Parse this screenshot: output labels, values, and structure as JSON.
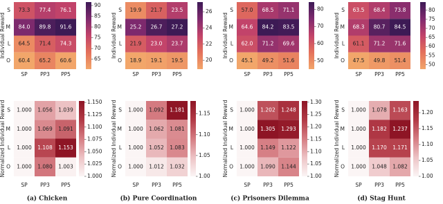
{
  "chart_data": [
    {
      "type": "heatmap",
      "ylabel": "Individual Reward",
      "x": [
        "SP",
        "PP3",
        "PP5"
      ],
      "y": [
        "S",
        "M",
        "L",
        "O"
      ],
      "values": [
        [
          73.3,
          77.4,
          76.1
        ],
        [
          84.0,
          89.8,
          91.6
        ],
        [
          64.5,
          71.4,
          74.3
        ],
        [
          60.4,
          65.2,
          60.6
        ]
      ],
      "value_labels": [
        [
          "73.3",
          "77.4",
          "76.1"
        ],
        [
          "84.0",
          "89.8",
          "91.6"
        ],
        [
          "64.5",
          "71.4",
          "74.3"
        ],
        [
          "60.4",
          "65.2",
          "60.6"
        ]
      ],
      "clim": [
        60.4,
        91.6
      ],
      "colorbar_ticks": [
        65,
        70,
        75,
        80,
        85,
        90
      ],
      "colormap": [
        "#f2a66a",
        "#e4715b",
        "#c2436a",
        "#7f2a6e",
        "#3d1a55"
      ]
    },
    {
      "type": "heatmap",
      "ylabel": "Individual Reward",
      "x": [
        "SP",
        "PP3",
        "PP5"
      ],
      "y": [
        "S",
        "M",
        "L",
        "O"
      ],
      "values": [
        [
          19.9,
          21.7,
          23.5
        ],
        [
          25.2,
          26.7,
          27.2
        ],
        [
          21.9,
          23.0,
          23.7
        ],
        [
          18.9,
          19.1,
          19.5
        ]
      ],
      "value_labels": [
        [
          "19.9",
          "21.7",
          "23.5"
        ],
        [
          "25.2",
          "26.7",
          "27.2"
        ],
        [
          "21.9",
          "23.0",
          "23.7"
        ],
        [
          "18.9",
          "19.1",
          "19.5"
        ]
      ],
      "clim": [
        18.9,
        27.2
      ],
      "colorbar_ticks": [
        20,
        22,
        24,
        26
      ],
      "colormap": [
        "#f2a66a",
        "#e4715b",
        "#c2436a",
        "#7f2a6e",
        "#3d1a55"
      ]
    },
    {
      "type": "heatmap",
      "ylabel": "Individual Reward",
      "x": [
        "SP",
        "PP3",
        "PP5"
      ],
      "y": [
        "S",
        "M",
        "L",
        "O"
      ],
      "values": [
        [
          57.0,
          68.5,
          71.1
        ],
        [
          64.6,
          84.2,
          83.5
        ],
        [
          62.0,
          71.2,
          69.6
        ],
        [
          45.1,
          49.2,
          51.6
        ]
      ],
      "value_labels": [
        [
          "57.0",
          "68.5",
          "71.1"
        ],
        [
          "64.6",
          "84.2",
          "83.5"
        ],
        [
          "62.0",
          "71.2",
          "69.6"
        ],
        [
          "45.1",
          "49.2",
          "51.6"
        ]
      ],
      "clim": [
        45.1,
        84.2
      ],
      "colorbar_ticks": [
        50,
        60,
        70,
        80
      ],
      "colormap": [
        "#f2a66a",
        "#e4715b",
        "#c2436a",
        "#7f2a6e",
        "#3d1a55"
      ]
    },
    {
      "type": "heatmap",
      "ylabel": "Individual Reward",
      "x": [
        "SP",
        "PP3",
        "PP5"
      ],
      "y": [
        "S",
        "M",
        "L",
        "O"
      ],
      "values": [
        [
          63.5,
          68.4,
          73.8
        ],
        [
          68.3,
          80.7,
          84.5
        ],
        [
          61.1,
          71.2,
          71.6
        ],
        [
          47.5,
          49.8,
          51.4
        ]
      ],
      "value_labels": [
        [
          "63.5",
          "68.4",
          "73.8"
        ],
        [
          "68.3",
          "80.7",
          "84.5"
        ],
        [
          "61.1",
          "71.2",
          "71.6"
        ],
        [
          "47.5",
          "49.8",
          "51.4"
        ]
      ],
      "clim": [
        47.5,
        84.5
      ],
      "colorbar_ticks": [
        50,
        55,
        60,
        65,
        70,
        75,
        80
      ],
      "colormap": [
        "#f2a66a",
        "#e4715b",
        "#c2436a",
        "#7f2a6e",
        "#3d1a55"
      ]
    },
    {
      "type": "heatmap",
      "ylabel": "Normalized Individual Reward",
      "x": [
        "SP",
        "PP3",
        "PP5"
      ],
      "y": [
        "S",
        "M",
        "L",
        "O"
      ],
      "values": [
        [
          1.0,
          1.056,
          1.039
        ],
        [
          1.0,
          1.069,
          1.091
        ],
        [
          1.0,
          1.108,
          1.153
        ],
        [
          1.0,
          1.08,
          1.003
        ]
      ],
      "value_labels": [
        [
          "1.000",
          "1.056",
          "1.039"
        ],
        [
          "1.000",
          "1.069",
          "1.091"
        ],
        [
          "1.000",
          "1.108",
          "1.153"
        ],
        [
          "1.000",
          "1.080",
          "1.003"
        ]
      ],
      "clim": [
        1.0,
        1.153
      ],
      "colorbar_ticks": [
        {
          "value": 1.0,
          "label": "1.000"
        },
        {
          "value": 1.025,
          "label": "1.025"
        },
        {
          "value": 1.05,
          "label": "1.050"
        },
        {
          "value": 1.075,
          "label": "1.075"
        },
        {
          "value": 1.1,
          "label": "1.100"
        },
        {
          "value": 1.125,
          "label": "1.125"
        },
        {
          "value": 1.15,
          "label": "1.150"
        }
      ],
      "colormap": [
        "#fbf5f5",
        "#edc3c5",
        "#d57c82",
        "#b23a46",
        "#8e1525"
      ]
    },
    {
      "type": "heatmap",
      "ylabel": "Normalized Individual Reward",
      "x": [
        "SP",
        "PP3",
        "PP5"
      ],
      "y": [
        "S",
        "M",
        "L",
        "O"
      ],
      "values": [
        [
          1.0,
          1.092,
          1.181
        ],
        [
          1.0,
          1.062,
          1.081
        ],
        [
          1.0,
          1.052,
          1.083
        ],
        [
          1.0,
          1.012,
          1.032
        ]
      ],
      "value_labels": [
        [
          "1.000",
          "1.092",
          "1.181"
        ],
        [
          "1.000",
          "1.062",
          "1.081"
        ],
        [
          "1.000",
          "1.052",
          "1.083"
        ],
        [
          "1.000",
          "1.012",
          "1.032"
        ]
      ],
      "clim": [
        1.0,
        1.181
      ],
      "colorbar_ticks": [
        {
          "value": 1.0,
          "label": "1.00"
        },
        {
          "value": 1.05,
          "label": "1.05"
        },
        {
          "value": 1.1,
          "label": "1.10"
        },
        {
          "value": 1.15,
          "label": "1.15"
        }
      ],
      "colormap": [
        "#fbf5f5",
        "#edc3c5",
        "#d57c82",
        "#b23a46",
        "#8e1525"
      ]
    },
    {
      "type": "heatmap",
      "ylabel": "Normalized Individual Reward",
      "x": [
        "SP",
        "PP3",
        "PP5"
      ],
      "y": [
        "S",
        "M",
        "L",
        "O"
      ],
      "values": [
        [
          1.0,
          1.202,
          1.248
        ],
        [
          1.0,
          1.305,
          1.293
        ],
        [
          1.0,
          1.149,
          1.122
        ],
        [
          1.0,
          1.09,
          1.144
        ]
      ],
      "value_labels": [
        [
          "1.000",
          "1.202",
          "1.248"
        ],
        [
          "1.000",
          "1.305",
          "1.293"
        ],
        [
          "1.000",
          "1.149",
          "1.122"
        ],
        [
          "1.000",
          "1.090",
          "1.144"
        ]
      ],
      "clim": [
        1.0,
        1.305
      ],
      "colorbar_ticks": [
        {
          "value": 1.0,
          "label": "1.00"
        },
        {
          "value": 1.05,
          "label": "1.05"
        },
        {
          "value": 1.1,
          "label": "1.10"
        },
        {
          "value": 1.15,
          "label": "1.15"
        },
        {
          "value": 1.2,
          "label": "1.20"
        },
        {
          "value": 1.25,
          "label": "1.25"
        },
        {
          "value": 1.3,
          "label": "1.30"
        }
      ],
      "colormap": [
        "#fbf5f5",
        "#edc3c5",
        "#d57c82",
        "#b23a46",
        "#8e1525"
      ]
    },
    {
      "type": "heatmap",
      "ylabel": "Normalized Individual Reward",
      "x": [
        "SP",
        "PP3",
        "PP5"
      ],
      "y": [
        "S",
        "M",
        "L",
        "O"
      ],
      "values": [
        [
          1.0,
          1.078,
          1.163
        ],
        [
          1.0,
          1.182,
          1.237
        ],
        [
          1.0,
          1.17,
          1.171
        ],
        [
          1.0,
          1.048,
          1.082
        ]
      ],
      "value_labels": [
        [
          "1.000",
          "1.078",
          "1.163"
        ],
        [
          "1.000",
          "1.182",
          "1.237"
        ],
        [
          "1.000",
          "1.170",
          "1.171"
        ],
        [
          "1.000",
          "1.048",
          "1.082"
        ]
      ],
      "clim": [
        1.0,
        1.237
      ],
      "colorbar_ticks": [
        {
          "value": 1.0,
          "label": "1.00"
        },
        {
          "value": 1.05,
          "label": "1.05"
        },
        {
          "value": 1.1,
          "label": "1.10"
        },
        {
          "value": 1.15,
          "label": "1.15"
        },
        {
          "value": 1.2,
          "label": "1.20"
        }
      ],
      "colormap": [
        "#fbf5f5",
        "#edc3c5",
        "#d57c82",
        "#b23a46",
        "#8e1525"
      ]
    }
  ],
  "captions": [
    "(a) Chicken",
    "(b) Pure Coordination",
    "(c) Prisoners Dilemma",
    "(d) Stag Hunt"
  ]
}
